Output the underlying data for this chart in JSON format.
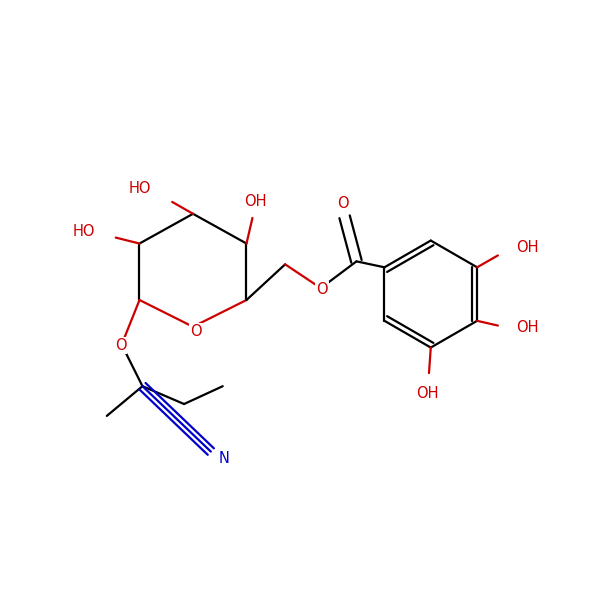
{
  "bg_color": "#ffffff",
  "bond_color": "#000000",
  "oxygen_color": "#cc0000",
  "nitrogen_color": "#0000cc",
  "font_size": 10.5,
  "line_width": 1.6,
  "figsize": [
    6.0,
    6.0
  ],
  "dpi": 100,
  "xlim": [
    0,
    10
  ],
  "ylim": [
    0,
    10
  ]
}
